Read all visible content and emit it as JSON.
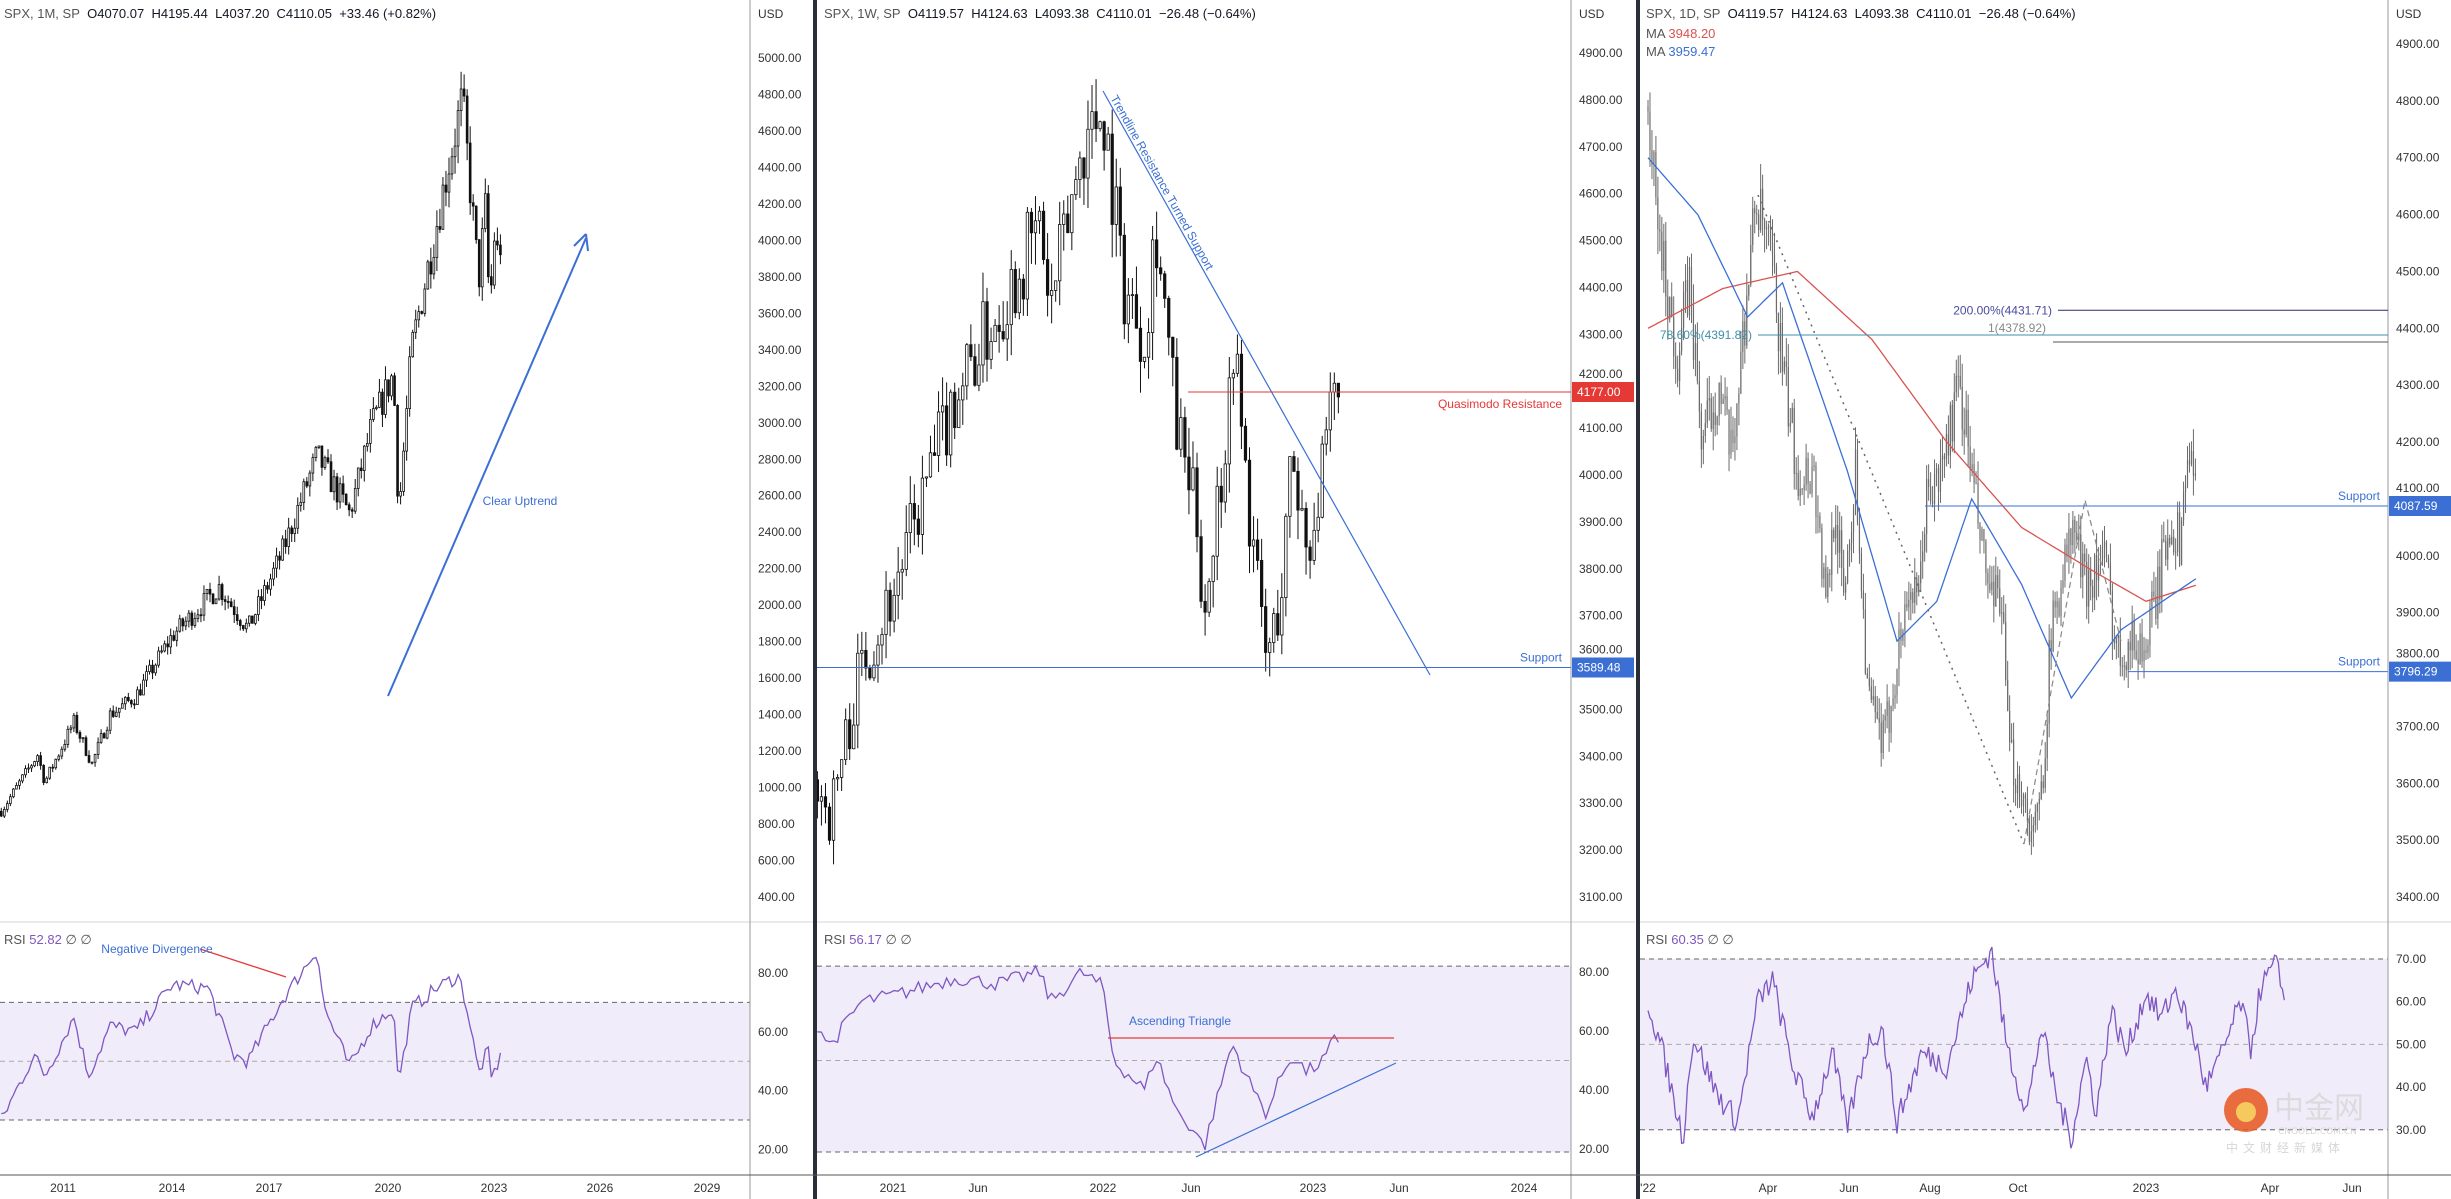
{
  "colors": {
    "rsi_line": "#7e57c2",
    "rsi_fill": "#f1ecf9",
    "trend_blue": "#3b6fd4",
    "resistance_red": "#e53935",
    "ma_red": "#d9534f",
    "ma_blue": "#3b6fd4",
    "fib_teal": "#3f8fa8",
    "fib_navy": "#2c2c6c",
    "bar_grey": "#6b6b6b"
  },
  "panels": [
    {
      "header": {
        "symbol": "SPX, 1M, SP",
        "open": "O4070.07",
        "high": "H4195.44",
        "low": "L4037.20",
        "close": "C4110.05",
        "change": "+33.46 (+0.82%)"
      },
      "currency": "USD",
      "rsi": {
        "label": "RSI",
        "value": "52.82",
        "extra": "∅ ∅"
      },
      "annotations": {
        "uptrend": "Clear Uptrend",
        "divergence": "Negative Divergence"
      }
    },
    {
      "header": {
        "symbol": "SPX, 1W, SP",
        "open": "O4119.57",
        "high": "H4124.63",
        "low": "L4093.38",
        "close": "C4110.01",
        "change": "−26.48 (−0.64%)"
      },
      "currency": "USD",
      "rsi": {
        "label": "RSI",
        "value": "56.17",
        "extra": "∅ ∅"
      },
      "annotations": {
        "trendline": "Trendline Resistance Turned Support",
        "quasimodo": "Quasimodo Resistance",
        "quasimodo_tag": "4177.00",
        "support": "Support",
        "support_tag": "3589.48",
        "triangle": "Ascending Triangle"
      }
    },
    {
      "header": {
        "symbol": "SPX, 1D, SP",
        "open": "O4119.57",
        "high": "H4124.63",
        "low": "L4093.38",
        "close": "C4110.01",
        "change": "−26.48 (−0.64%)"
      },
      "currency": "USD",
      "ma1": {
        "label": "MA",
        "value": "3948.20"
      },
      "ma2": {
        "label": "MA",
        "value": "3959.47"
      },
      "rsi": {
        "label": "RSI",
        "value": "60.35",
        "extra": "∅ ∅"
      },
      "annotations": {
        "fib200": "200.00%(4431.71)",
        "fib1": "1(4378.92)",
        "fib786": "78.60%(4391.82)",
        "support1": "Support",
        "support1_tag": "4087.59",
        "support2": "Support",
        "support2_tag": "3796.29"
      }
    }
  ],
  "watermark": {
    "brand": "中金网",
    "domain": "CNGOLD.COM.CN",
    "slogan": "中文财经新媒体"
  },
  "chart_data": [
    {
      "type": "candlestick",
      "title": "SPX, 1M, SP",
      "x_ticks": [
        "2011",
        "2014",
        "2017",
        "2020",
        "2023",
        "2026",
        "2029"
      ],
      "y_ticks": [
        "5000.00",
        "4800.00",
        "4600.00",
        "4400.00",
        "4200.00",
        "4000.00",
        "3800.00",
        "3600.00",
        "3400.00",
        "3200.00",
        "3000.00",
        "2800.00",
        "2600.00",
        "2400.00",
        "2200.00",
        "2000.00",
        "1800.00",
        "1600.00",
        "1400.00",
        "1200.00",
        "1000.00",
        "800.00",
        "600.00",
        "400.00"
      ],
      "ylim": [
        400,
        5000
      ],
      "price_path": [
        [
          2009.3,
          870
        ],
        [
          2010.3,
          1180
        ],
        [
          2010.5,
          1030
        ],
        [
          2011.3,
          1360
        ],
        [
          2011.8,
          1130
        ],
        [
          2012.3,
          1400
        ],
        [
          2013,
          1500
        ],
        [
          2014,
          1830
        ],
        [
          2015.3,
          2100
        ],
        [
          2016.1,
          1870
        ],
        [
          2017,
          2270
        ],
        [
          2018,
          2820
        ],
        [
          2018.9,
          2500
        ],
        [
          2019.5,
          2980
        ],
        [
          2020.1,
          3270
        ],
        [
          2020.25,
          2500
        ],
        [
          2020.6,
          3400
        ],
        [
          2021,
          3800
        ],
        [
          2021.6,
          4400
        ],
        [
          2022,
          4770
        ],
        [
          2022.45,
          3780
        ],
        [
          2022.65,
          4200
        ],
        [
          2022.75,
          3580
        ],
        [
          2022.9,
          4080
        ],
        [
          2023.0,
          3850
        ],
        [
          2023.1,
          4110
        ]
      ],
      "rsi": {
        "y_ticks": [
          "80.00",
          "60.00",
          "40.00",
          "20.00"
        ],
        "bands": [
          70,
          50,
          30
        ],
        "path": [
          [
            2009.3,
            30
          ],
          [
            2010.2,
            52
          ],
          [
            2010.5,
            45
          ],
          [
            2011.3,
            65
          ],
          [
            2011.7,
            45
          ],
          [
            2012.3,
            62
          ],
          [
            2013,
            60
          ],
          [
            2014,
            76
          ],
          [
            2015,
            75
          ],
          [
            2015.7,
            52
          ],
          [
            2016.1,
            50
          ],
          [
            2017,
            70
          ],
          [
            2018,
            88
          ],
          [
            2018.2,
            68
          ],
          [
            2018.9,
            48
          ],
          [
            2019.5,
            62
          ],
          [
            2020.1,
            68
          ],
          [
            2020.25,
            42
          ],
          [
            2020.6,
            68
          ],
          [
            2021.3,
            75
          ],
          [
            2021.9,
            79
          ],
          [
            2022.1,
            70
          ],
          [
            2022.45,
            46
          ],
          [
            2022.7,
            54
          ],
          [
            2022.8,
            44
          ],
          [
            2023.1,
            52.82
          ]
        ]
      }
    },
    {
      "type": "candlestick",
      "title": "SPX, 1W, SP",
      "x_ticks": [
        "2021",
        "Jun",
        "2022",
        "Jun",
        "2023",
        "Jun",
        "2024"
      ],
      "y_ticks": [
        "4900.00",
        "4800.00",
        "4700.00",
        "4600.00",
        "4500.00",
        "4400.00",
        "4300.00",
        "4200.00",
        "4100.00",
        "4000.00",
        "3900.00",
        "3800.00",
        "3700.00",
        "3600.00",
        "3500.00",
        "3400.00",
        "3300.00",
        "3200.00",
        "3100.00"
      ],
      "ylim": [
        3100,
        4900
      ],
      "levels": {
        "quasimodo_resistance": 4177.0,
        "support": 3589.48
      },
      "price_path": [
        [
          2020.64,
          3350
        ],
        [
          2020.7,
          3270
        ],
        [
          2020.85,
          3600
        ],
        [
          2021,
          3750
        ],
        [
          2021.3,
          4180
        ],
        [
          2021.5,
          4350
        ],
        [
          2021.7,
          4530
        ],
        [
          2021.75,
          4350
        ],
        [
          2021.9,
          4700
        ],
        [
          2022.0,
          4790
        ],
        [
          2022.1,
          4400
        ],
        [
          2022.2,
          4300
        ],
        [
          2022.25,
          4550
        ],
        [
          2022.35,
          4100
        ],
        [
          2022.45,
          3900
        ],
        [
          2022.48,
          3700
        ],
        [
          2022.6,
          4150
        ],
        [
          2022.62,
          4300
        ],
        [
          2022.7,
          3900
        ],
        [
          2022.78,
          3600
        ],
        [
          2022.85,
          3750
        ],
        [
          2022.9,
          4050
        ],
        [
          2022.97,
          3850
        ],
        [
          2023.05,
          4000
        ],
        [
          2023.1,
          4170
        ],
        [
          2023.13,
          4110
        ]
      ],
      "rsi": {
        "y_ticks": [
          "80.00",
          "60.00",
          "40.00",
          "20.00"
        ],
        "bands": [
          82,
          50,
          19
        ],
        "path": [
          [
            2020.64,
            62
          ],
          [
            2020.7,
            55
          ],
          [
            2020.85,
            70
          ],
          [
            2021,
            72
          ],
          [
            2021.3,
            78
          ],
          [
            2021.5,
            76
          ],
          [
            2021.7,
            80
          ],
          [
            2021.75,
            70
          ],
          [
            2021.9,
            80
          ],
          [
            2022.0,
            75
          ],
          [
            2022.05,
            50
          ],
          [
            2022.2,
            40
          ],
          [
            2022.25,
            52
          ],
          [
            2022.35,
            33
          ],
          [
            2022.45,
            25
          ],
          [
            2022.48,
            20
          ],
          [
            2022.6,
            52
          ],
          [
            2022.62,
            55
          ],
          [
            2022.7,
            42
          ],
          [
            2022.78,
            32
          ],
          [
            2022.85,
            45
          ],
          [
            2022.9,
            52
          ],
          [
            2022.97,
            46
          ],
          [
            2023.05,
            50
          ],
          [
            2023.1,
            57
          ],
          [
            2023.13,
            56.17
          ]
        ]
      }
    },
    {
      "type": "candlestick",
      "title": "SPX, 1D, SP",
      "x_ticks": [
        "'22",
        "Apr",
        "Jun",
        "Aug",
        "Oct",
        "2023",
        "Apr",
        "Jun"
      ],
      "y_ticks": [
        "4900.00",
        "4800.00",
        "4700.00",
        "4600.00",
        "4500.00",
        "4400.00",
        "4300.00",
        "4200.00",
        "4100.00",
        "4000.00",
        "3900.00",
        "3800.00",
        "3700.00",
        "3600.00",
        "3500.00",
        "3400.00"
      ],
      "ylim": [
        3400,
        4900
      ],
      "levels": {
        "fib_200": 4431.71,
        "fib_1": 4378.92,
        "fib_786": 4391.82,
        "support_1": 4087.59,
        "support_2": 3796.29
      },
      "price_path": [
        [
          2022.0,
          4790
        ],
        [
          2022.017,
          4600
        ],
        [
          2022.058,
          4350
        ],
        [
          2022.083,
          4480
        ],
        [
          2022.108,
          4200
        ],
        [
          2022.142,
          4300
        ],
        [
          2022.167,
          4170
        ],
        [
          2022.192,
          4400
        ],
        [
          2022.217,
          4630
        ],
        [
          2022.25,
          4500
        ],
        [
          2022.275,
          4300
        ],
        [
          2022.3,
          4150
        ],
        [
          2022.333,
          4150
        ],
        [
          2022.358,
          3900
        ],
        [
          2022.375,
          4100
        ],
        [
          2022.392,
          3930
        ],
        [
          2022.417,
          4150
        ],
        [
          2022.442,
          3750
        ],
        [
          2022.458,
          3700
        ],
        [
          2022.475,
          3670
        ],
        [
          2022.5,
          3820
        ],
        [
          2022.525,
          3950
        ],
        [
          2022.542,
          3900
        ],
        [
          2022.558,
          4100
        ],
        [
          2022.583,
          4130
        ],
        [
          2022.625,
          4300
        ],
        [
          2022.642,
          4200
        ],
        [
          2022.667,
          4030
        ],
        [
          2022.692,
          3900
        ],
        [
          2022.708,
          3950
        ],
        [
          2022.725,
          3650
        ],
        [
          2022.75,
          3590
        ],
        [
          2022.775,
          3500
        ],
        [
          2022.792,
          3600
        ],
        [
          2022.808,
          3850
        ],
        [
          2022.833,
          3980
        ],
        [
          2022.858,
          4050
        ],
        [
          2022.875,
          3950
        ],
        [
          2022.917,
          4000
        ],
        [
          2022.942,
          3830
        ],
        [
          2022.967,
          3850
        ],
        [
          2023.0,
          3840
        ],
        [
          2023.025,
          3950
        ],
        [
          2023.05,
          4070
        ],
        [
          2023.067,
          4020
        ],
        [
          2023.083,
          4180
        ],
        [
          2023.1,
          4110
        ]
      ],
      "ma_series": [
        {
          "name": "MA",
          "value_label": "3948.20",
          "path": [
            [
              2022.0,
              4400
            ],
            [
              2022.15,
              4470
            ],
            [
              2022.3,
              4500
            ],
            [
              2022.45,
              4380
            ],
            [
              2022.6,
              4200
            ],
            [
              2022.75,
              4050
            ],
            [
              2022.9,
              3970
            ],
            [
              2023.0,
              3920
            ],
            [
              2023.1,
              3948.2
            ]
          ]
        },
        {
          "name": "MA",
          "value_label": "3959.47",
          "path": [
            [
              2022.0,
              4700
            ],
            [
              2022.1,
              4600
            ],
            [
              2022.2,
              4420
            ],
            [
              2022.27,
              4480
            ],
            [
              2022.4,
              4150
            ],
            [
              2022.5,
              3850
            ],
            [
              2022.58,
              3920
            ],
            [
              2022.65,
              4100
            ],
            [
              2022.75,
              3950
            ],
            [
              2022.85,
              3750
            ],
            [
              2022.95,
              3870
            ],
            [
              2023.05,
              3930
            ],
            [
              2023.1,
              3959.47
            ]
          ]
        }
      ],
      "rsi": {
        "y_ticks": [
          "70.00",
          "60.00",
          "50.00",
          "40.00",
          "30.00"
        ],
        "bands": [
          70,
          50,
          30
        ],
        "path": [
          [
            2022.0,
            60
          ],
          [
            2022.03,
            48
          ],
          [
            2022.07,
            28
          ],
          [
            2022.09,
            52
          ],
          [
            2022.14,
            38
          ],
          [
            2022.18,
            32
          ],
          [
            2022.22,
            60
          ],
          [
            2022.25,
            65
          ],
          [
            2022.29,
            45
          ],
          [
            2022.33,
            33
          ],
          [
            2022.37,
            48
          ],
          [
            2022.4,
            31
          ],
          [
            2022.44,
            50
          ],
          [
            2022.47,
            54
          ],
          [
            2022.5,
            32
          ],
          [
            2022.55,
            48
          ],
          [
            2022.6,
            45
          ],
          [
            2022.65,
            65
          ],
          [
            2022.69,
            72
          ],
          [
            2022.72,
            50
          ],
          [
            2022.76,
            34
          ],
          [
            2022.79,
            54
          ],
          [
            2022.82,
            38
          ],
          [
            2022.85,
            28
          ],
          [
            2022.88,
            47
          ],
          [
            2022.9,
            34
          ],
          [
            2022.93,
            58
          ],
          [
            2022.96,
            48
          ],
          [
            2023.0,
            62
          ],
          [
            2023.03,
            56
          ],
          [
            2023.06,
            63
          ],
          [
            2023.1,
            50
          ],
          [
            2023.12,
            40
          ],
          [
            2023.15,
            47
          ],
          [
            2023.19,
            60
          ],
          [
            2023.21,
            49
          ],
          [
            2023.23,
            63
          ],
          [
            2023.26,
            69
          ],
          [
            2023.28,
            60.35
          ]
        ]
      }
    }
  ]
}
